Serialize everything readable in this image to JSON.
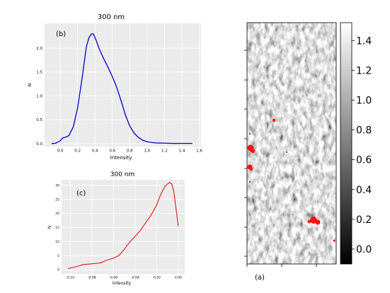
{
  "chart_data": [
    {
      "id": "b",
      "type": "line",
      "title": "300 nm",
      "panel_label": "(b)",
      "xlabel": "Intensity",
      "ylabel": "N",
      "xlim": [
        -0.18,
        1.62
      ],
      "ylim": [
        -0.06,
        2.52
      ],
      "xticks": [
        0.0,
        0.2,
        0.4,
        0.6,
        0.8,
        1.0,
        1.2,
        1.4,
        1.6
      ],
      "xtick_labels": [
        "0.0",
        "0.2",
        "0.4",
        "0.6",
        "0.8",
        "1.0",
        "1.2",
        "1.4",
        "1.6"
      ],
      "yticks": [
        0.0,
        0.5,
        1.0,
        1.5,
        2.0
      ],
      "ytick_labels": [
        "0.0",
        "0.5",
        "1.0",
        "1.5",
        "2.0"
      ],
      "grid": true,
      "color": "#0000cc",
      "series": [
        {
          "x": [
            -0.1,
            -0.05,
            0.0,
            0.03,
            0.07,
            0.1,
            0.15,
            0.2,
            0.25,
            0.3,
            0.33,
            0.36,
            0.38,
            0.41,
            0.45,
            0.5,
            0.55,
            0.6,
            0.65,
            0.7,
            0.75,
            0.8,
            0.85,
            0.9,
            0.95,
            1.0,
            1.05,
            1.1,
            1.2,
            1.3,
            1.4,
            1.52
          ],
          "y": [
            0.0,
            0.01,
            0.06,
            0.12,
            0.14,
            0.17,
            0.35,
            0.75,
            1.35,
            2.02,
            2.22,
            2.3,
            2.3,
            2.18,
            1.98,
            1.78,
            1.6,
            1.4,
            1.18,
            0.9,
            0.6,
            0.37,
            0.22,
            0.13,
            0.07,
            0.04,
            0.025,
            0.015,
            0.01,
            0.005,
            0.005,
            0.005
          ]
        }
      ]
    },
    {
      "id": "c",
      "type": "line",
      "title": "300 nm",
      "panel_label": "(c)",
      "xlabel": "Intensity",
      "ylabel": "N",
      "xlim": [
        -0.108,
        0.006
      ],
      "ylim": [
        -1.5,
        32
      ],
      "xticks": [
        -0.1,
        -0.08,
        -0.06,
        -0.04,
        -0.02,
        0.0
      ],
      "xtick_labels": [
        "-0.10",
        "-0.08",
        "-0.06",
        "-0.04",
        "-0.02",
        "0.00"
      ],
      "yticks": [
        0,
        5,
        10,
        15,
        20,
        25,
        30
      ],
      "ytick_labels": [
        "0",
        "5",
        "10",
        "15",
        "20",
        "25",
        "30"
      ],
      "grid": true,
      "color": "#dd0000",
      "series": [
        {
          "x": [
            -0.102,
            -0.095,
            -0.088,
            -0.08,
            -0.072,
            -0.066,
            -0.06,
            -0.055,
            -0.05,
            -0.045,
            -0.04,
            -0.035,
            -0.03,
            -0.025,
            -0.02,
            -0.017,
            -0.014,
            -0.011,
            -0.008,
            -0.006,
            -0.004,
            -0.002,
            0.0
          ],
          "y": [
            0.4,
            1.0,
            1.8,
            2.1,
            2.4,
            3.4,
            4.1,
            5.0,
            7.2,
            9.8,
            11.8,
            14.0,
            16.8,
            19.5,
            23.0,
            26.0,
            28.5,
            30.2,
            31.0,
            30.5,
            27.5,
            21.5,
            15.5
          ]
        }
      ]
    },
    {
      "id": "a",
      "type": "heatmap",
      "panel_label": "(a)",
      "colormap": "grayscale",
      "colorbar_ticks": [
        "1.4",
        "1.2",
        "1.0",
        "0.8",
        "0.6",
        "0.4",
        "0.2",
        "0.0"
      ],
      "colorbar_tick_values": [
        1.4,
        1.2,
        1.0,
        0.8,
        0.6,
        0.4,
        0.2,
        0.0
      ],
      "colorbar_range": [
        -0.1,
        1.52
      ],
      "highlight_color": "#ff0000"
    }
  ]
}
